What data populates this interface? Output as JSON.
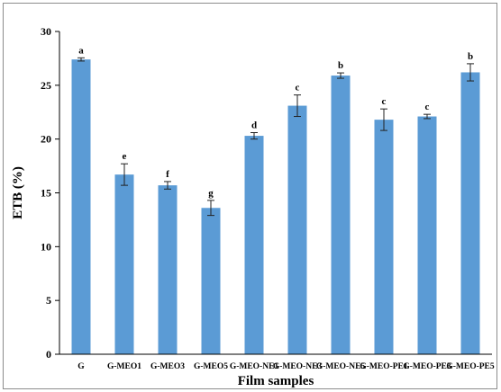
{
  "chart_data": {
    "type": "bar",
    "title": "",
    "xlabel": "Film samples",
    "ylabel": "ETB (%)",
    "ylim": [
      0,
      30
    ],
    "yticks": [
      0,
      5,
      10,
      15,
      20,
      25,
      30
    ],
    "grid": false,
    "bar_color": "#5b9bd5",
    "categories": [
      "G",
      "G-MEO1",
      "G-MEO3",
      "G-MEO5",
      "G-MEO-NE1",
      "G-MEO-NE3",
      "G-MEO-NE5",
      "G-MEO-PE1",
      "G-MEO-PE3",
      "G-MEO-PE5"
    ],
    "values": [
      27.4,
      16.7,
      15.7,
      13.6,
      20.3,
      23.1,
      25.9,
      21.8,
      22.1,
      26.2
    ],
    "errors": [
      0.15,
      1.0,
      0.35,
      0.7,
      0.3,
      1.0,
      0.25,
      1.0,
      0.2,
      0.8
    ],
    "letters": [
      "a",
      "e",
      "f",
      "g",
      "d",
      "c",
      "b",
      "c",
      "c",
      "b"
    ]
  }
}
